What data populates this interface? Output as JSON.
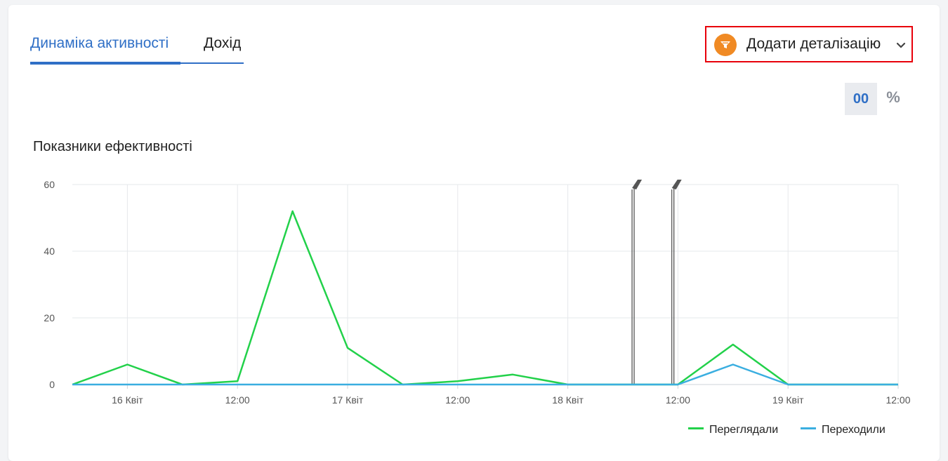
{
  "tabs": [
    {
      "label": "Динаміка активності",
      "active": true
    },
    {
      "label": "Дохід",
      "active": false
    }
  ],
  "detail_button": {
    "label": "Додати деталізацію",
    "icon": "filter-icon",
    "chevron": "chevron-down-icon",
    "accent": "#f08a24",
    "border": "#e8000a"
  },
  "value_toggle": {
    "absolute_label": "00",
    "percent_label": "%",
    "selected": "absolute"
  },
  "colors": {
    "accent": "#2f6fc6",
    "series_views": "#22d14a",
    "series_clicks": "#3aaee0",
    "marker": "#555555"
  },
  "chart_data": {
    "type": "line",
    "title": "Показники ефективності",
    "xlabel": "",
    "ylabel": "",
    "ylim": [
      0,
      60
    ],
    "yticks": [
      0,
      20,
      40,
      60
    ],
    "xlim": [
      "2024-04-15T18:00",
      "2024-04-19T12:00"
    ],
    "xticks": [
      {
        "x": "2024-04-16T00:00",
        "label": "16 Квіт"
      },
      {
        "x": "2024-04-16T12:00",
        "label": "12:00"
      },
      {
        "x": "2024-04-17T00:00",
        "label": "17 Квіт"
      },
      {
        "x": "2024-04-17T12:00",
        "label": "12:00"
      },
      {
        "x": "2024-04-18T00:00",
        "label": "18 Квіт"
      },
      {
        "x": "2024-04-18T12:00",
        "label": "12:00"
      },
      {
        "x": "2024-04-19T00:00",
        "label": "19 Квіт"
      },
      {
        "x": "2024-04-19T12:00",
        "label": "12:00"
      }
    ],
    "grid": true,
    "legend_position": "bottom-right",
    "x": [
      "2024-04-15T18:00",
      "2024-04-16T00:00",
      "2024-04-16T06:00",
      "2024-04-16T12:00",
      "2024-04-16T18:00",
      "2024-04-17T00:00",
      "2024-04-17T06:00",
      "2024-04-17T12:00",
      "2024-04-17T18:00",
      "2024-04-18T00:00",
      "2024-04-18T06:00",
      "2024-04-18T12:00",
      "2024-04-18T18:00",
      "2024-04-19T00:00",
      "2024-04-19T06:00",
      "2024-04-19T12:00"
    ],
    "series": [
      {
        "name": "Переглядали",
        "values": [
          0,
          6,
          0,
          1,
          52,
          11,
          0,
          1,
          3,
          0,
          0,
          0,
          12,
          0,
          0,
          0
        ]
      },
      {
        "name": "Переходили",
        "values": [
          0,
          0,
          0,
          0,
          0,
          0,
          0,
          0,
          0,
          0,
          0,
          0,
          6,
          0,
          0,
          0
        ]
      }
    ],
    "annotations": [
      {
        "x": "2024-04-18T07:00",
        "type": "flag-marker"
      },
      {
        "x": "2024-04-18T11:20",
        "type": "flag-marker"
      }
    ]
  }
}
